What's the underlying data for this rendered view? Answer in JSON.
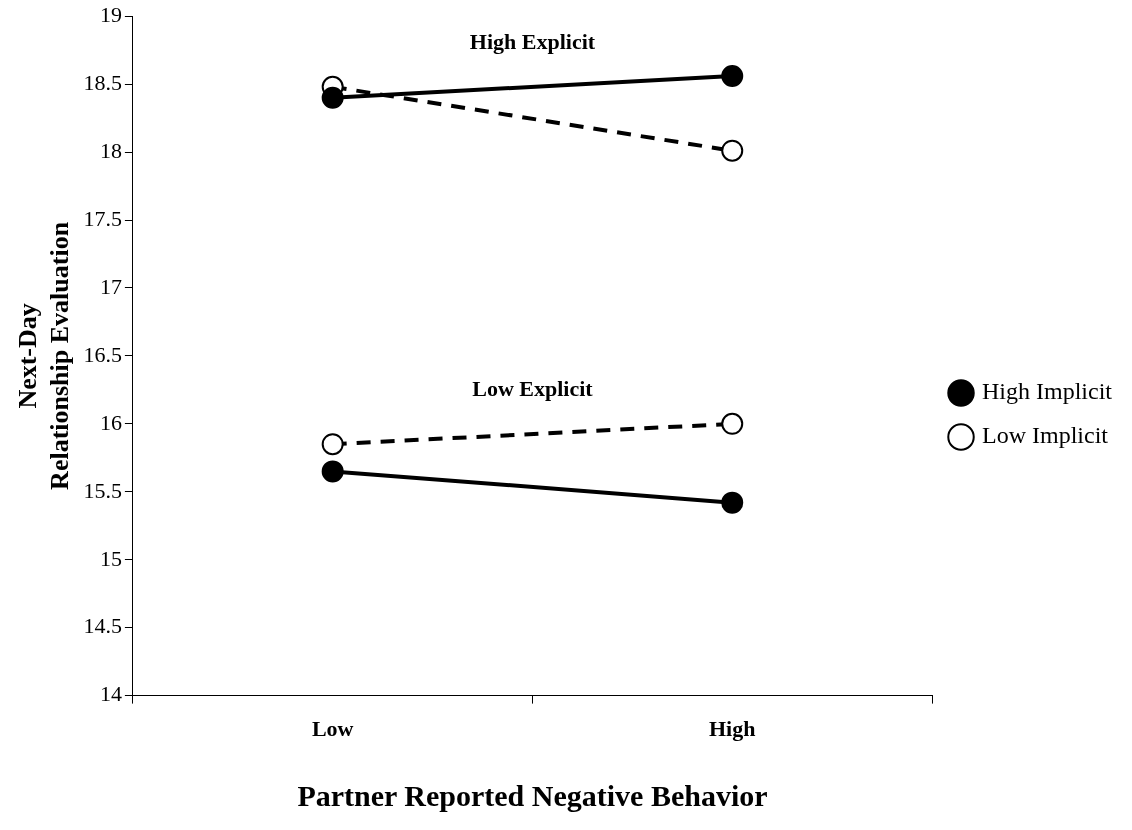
{
  "chart_data": {
    "type": "line",
    "xlabel": "Partner Reported Negative Behavior",
    "ylabel": "Next-Day\nRelationship Evaluation",
    "categories": [
      "Low",
      "High"
    ],
    "series": [
      {
        "name": "High Implicit",
        "color": "#000000",
        "values": [
          18.4,
          18.56
        ],
        "marker": "circle",
        "line_style": "solid"
      },
      {
        "name": "Low Implicit",
        "color": "#000000",
        "values": [
          18.48,
          18.01
        ],
        "marker": "circle",
        "line_style": "dashed"
      },
      {
        "color": "#000000",
        "values": [
          15.85,
          16.0
        ],
        "marker": "circle",
        "line_style": "dashed"
      },
      {
        "color": "#000000",
        "values": [
          15.65,
          15.42
        ],
        "marker": "circle",
        "line_style": "solid"
      }
    ],
    "annotations": [
      "High Explicit",
      "Low Explicit"
    ],
    "ylim": [
      14,
      19
    ],
    "yticks": [
      14,
      14.5,
      15,
      15.5,
      16,
      16.5,
      17,
      17.5,
      18,
      18.5,
      19
    ],
    "grid": false,
    "legend": "right"
  }
}
